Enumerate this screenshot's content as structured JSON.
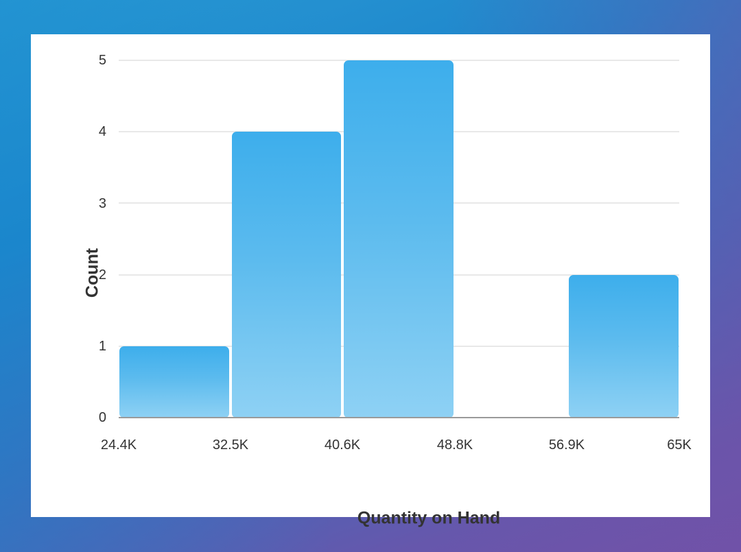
{
  "chart_data": {
    "type": "histogram",
    "title": "",
    "xlabel": "Quantity on Hand",
    "ylabel": "Count",
    "x_tick_labels": [
      "24.4K",
      "32.5K",
      "40.6K",
      "48.8K",
      "56.9K",
      "65K"
    ],
    "y_tick_labels": [
      "0",
      "1",
      "2",
      "3",
      "4",
      "5"
    ],
    "bin_edges": [
      24400,
      32500,
      40600,
      48800,
      56900,
      65000
    ],
    "bins": [
      {
        "range": "24.4K–32.5K",
        "count": 1
      },
      {
        "range": "32.5K–40.6K",
        "count": 4
      },
      {
        "range": "40.6K–48.8K",
        "count": 5
      },
      {
        "range": "48.8K–56.9K",
        "count": 0
      },
      {
        "range": "56.9K–65K",
        "count": 2
      }
    ],
    "categories": [
      "24.4K–32.5K",
      "32.5K–40.6K",
      "40.6K–48.8K",
      "48.8K–56.9K",
      "56.9K–65K"
    ],
    "values": [
      1,
      4,
      5,
      0,
      2
    ],
    "ylim": [
      0,
      5
    ],
    "xlim": [
      24400,
      65000
    ],
    "grid": true,
    "legend": null,
    "bar_color_top": "#3daeec",
    "bar_color_bottom": "#8ed1f4"
  },
  "background": {
    "gradient_start": "#1e86cc",
    "gradient_end": "#7152a8"
  }
}
